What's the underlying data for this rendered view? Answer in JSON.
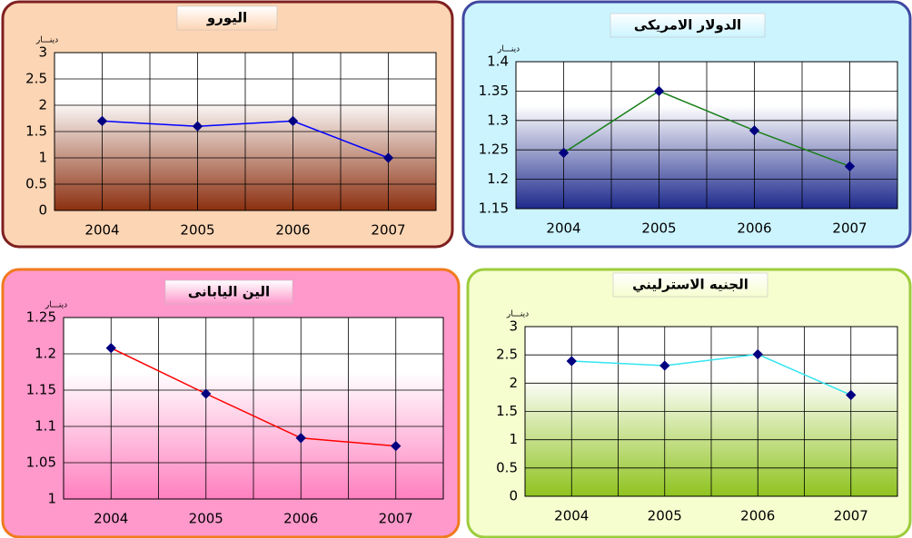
{
  "chart_data": [
    {
      "type": "line",
      "title": "اليورو",
      "y_label": "دينـــار",
      "categories": [
        "2004",
        "2005",
        "2006",
        "2007"
      ],
      "series": [
        {
          "values": [
            1.7,
            1.6,
            1.7,
            1.0
          ],
          "color": "#0000ff",
          "marker_color": "#000080"
        }
      ],
      "ylim": [
        0,
        3
      ],
      "yticks": [
        0,
        0.5,
        1,
        1.5,
        2,
        2.5,
        3
      ],
      "grid": true
    },
    {
      "type": "line",
      "title": "الدولار الامريكى",
      "y_label": "دينـــار",
      "categories": [
        "2004",
        "2005",
        "2006",
        "2007"
      ],
      "series": [
        {
          "values": [
            1.245,
            1.35,
            1.283,
            1.222
          ],
          "color": "#1a7f1a",
          "marker_color": "#000080"
        }
      ],
      "ylim": [
        1.15,
        1.4
      ],
      "yticks": [
        1.15,
        1.2,
        1.25,
        1.3,
        1.35,
        1.4
      ],
      "grid": true
    },
    {
      "type": "line",
      "title": "الين اليابانى",
      "y_label": "دينـــار",
      "categories": [
        "2004",
        "2005",
        "2006",
        "2007"
      ],
      "series": [
        {
          "values": [
            1.208,
            1.145,
            1.084,
            1.073
          ],
          "color": "#ff0000",
          "marker_color": "#000080"
        }
      ],
      "ylim": [
        1,
        1.25
      ],
      "yticks": [
        1,
        1.05,
        1.1,
        1.15,
        1.2,
        1.25
      ],
      "grid": true
    },
    {
      "type": "line",
      "title": "الجنيه الاسترليني",
      "y_label": "دينـــار",
      "categories": [
        "2004",
        "2005",
        "2006",
        "2007"
      ],
      "series": [
        {
          "values": [
            2.39,
            2.31,
            2.51,
            1.79
          ],
          "color": "#33e5f0",
          "marker_color": "#000080"
        }
      ],
      "ylim": [
        0,
        3
      ],
      "yticks": [
        0,
        0.5,
        1,
        1.5,
        2,
        2.5,
        3
      ],
      "grid": true
    }
  ]
}
